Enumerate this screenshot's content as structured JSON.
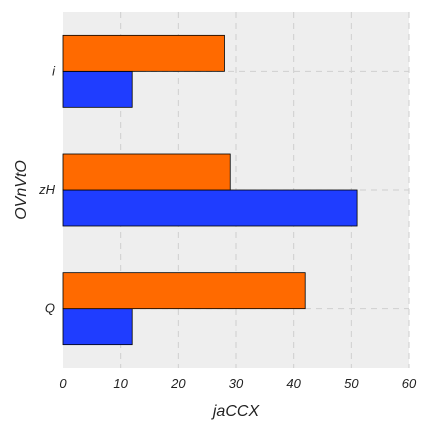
{
  "chart_data": {
    "type": "bar",
    "orientation": "horizontal",
    "categories": [
      "Q",
      "zH",
      "i"
    ],
    "series": [
      {
        "values": [
          12,
          51,
          12
        ],
        "color": "#1f3dff"
      },
      {
        "values": [
          42,
          29,
          28
        ],
        "color": "#ff6a00"
      }
    ],
    "title": "",
    "xlabel": "jaCCX",
    "ylabel": "OVnVtO",
    "xlim": [
      0,
      60
    ],
    "xticks": [
      0,
      10,
      20,
      30,
      40,
      50,
      60
    ],
    "grid": true,
    "legend": "none",
    "background_color": "#eeeeee"
  }
}
